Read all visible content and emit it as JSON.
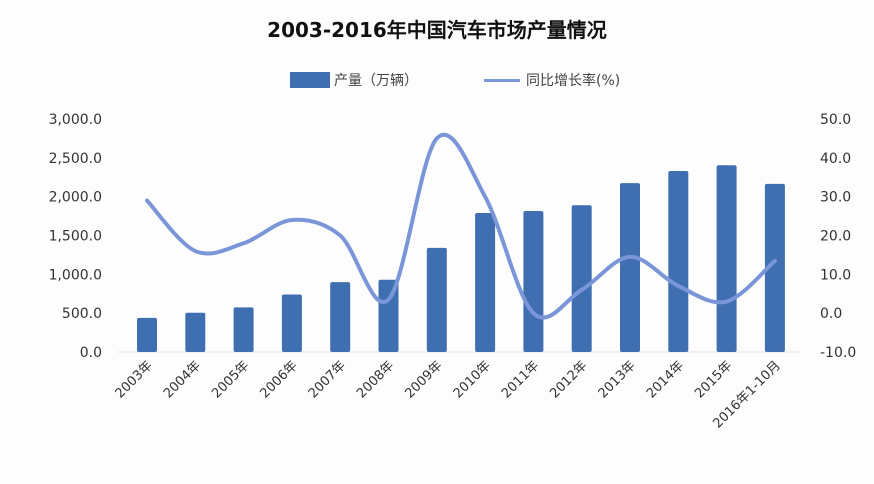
{
  "chart_data": {
    "type": "bar+line",
    "title": "2003-2016年中国汽车市场产量情况",
    "categories": [
      "2003年",
      "2004年",
      "2005年",
      "2006年",
      "2007年",
      "2008年",
      "2009年",
      "2010年",
      "2011年",
      "2012年",
      "2013年",
      "2014年",
      "2015年",
      "2016年1-10月"
    ],
    "series": [
      {
        "name": "产量（万辆）",
        "type": "bar",
        "axis": "left",
        "color": "#3f6fb0",
        "values": [
          440,
          505,
          575,
          740,
          900,
          930,
          1340,
          1790,
          1815,
          1890,
          2175,
          2330,
          2405,
          2165
        ]
      },
      {
        "name": "同比增长率(%)",
        "type": "line",
        "axis": "right",
        "color": "#7b96d8",
        "values": [
          29,
          16,
          18,
          24,
          20,
          3.5,
          45,
          30,
          0,
          6,
          14.5,
          7,
          3,
          13.5
        ]
      }
    ],
    "left_axis": {
      "range": [
        0,
        3000
      ],
      "ticks": [
        "0.0",
        "500.0",
        "1,000.0",
        "1,500.0",
        "2,000.0",
        "2,500.0",
        "3,000.0"
      ]
    },
    "right_axis": {
      "range": [
        -10,
        50
      ],
      "ticks": [
        "-10.0",
        "0.0",
        "10.0",
        "20.0",
        "30.0",
        "40.0",
        "50.0"
      ]
    },
    "legend_position": "top",
    "grid": false
  }
}
